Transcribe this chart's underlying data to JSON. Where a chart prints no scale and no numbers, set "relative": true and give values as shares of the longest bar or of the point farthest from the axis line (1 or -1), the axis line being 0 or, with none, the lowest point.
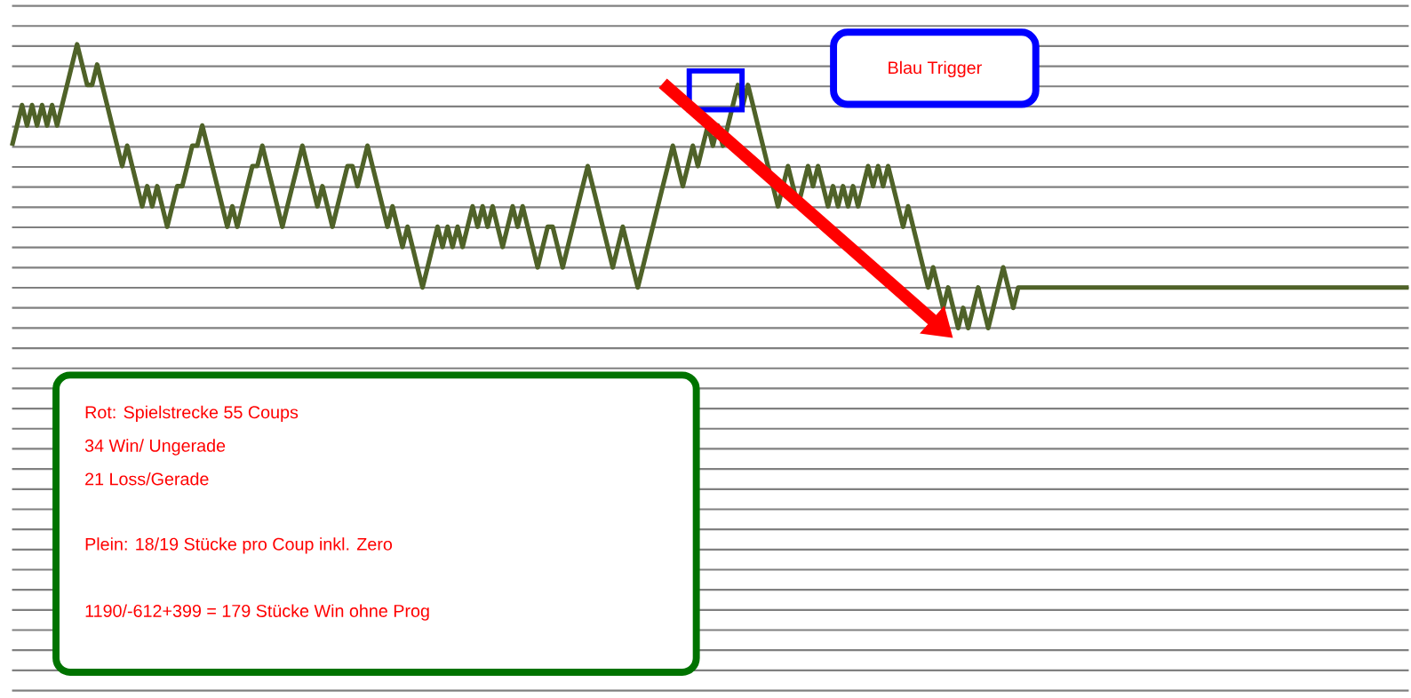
{
  "chart_data": {
    "type": "line",
    "relative": true,
    "grid": true,
    "color": "#4f6228",
    "categories": [
      null,
      null,
      null,
      null,
      null,
      null,
      null,
      null,
      null,
      null,
      null,
      null,
      null,
      null,
      null,
      null,
      null,
      null,
      null,
      null,
      null,
      null,
      null,
      null,
      null,
      null,
      null,
      null,
      null,
      null,
      null,
      null,
      null,
      null,
      null,
      null,
      null,
      null,
      null,
      null,
      null,
      null,
      null,
      null,
      null,
      null,
      null,
      null,
      null,
      null,
      null,
      null,
      null,
      null,
      null,
      null,
      null,
      null,
      null,
      null,
      null,
      null,
      null,
      null,
      null,
      null,
      null,
      null,
      null,
      null,
      null,
      null,
      null,
      null,
      null,
      null,
      null,
      null,
      null,
      null,
      null,
      null,
      null,
      null,
      null,
      null,
      null,
      null,
      null,
      null,
      null,
      null,
      null,
      null,
      null,
      null,
      null,
      null,
      null,
      null,
      null,
      null,
      null,
      null,
      null,
      null,
      null,
      null,
      null,
      null,
      null,
      null,
      null,
      null,
      null,
      null,
      null,
      null,
      null,
      null,
      null,
      null,
      null,
      null,
      null,
      null,
      null,
      null,
      null,
      null,
      null,
      null,
      null,
      null,
      null,
      null,
      null,
      null,
      null,
      null,
      null,
      null,
      null,
      null,
      null,
      null,
      null,
      null,
      null,
      null,
      null,
      null,
      null,
      null,
      null,
      null,
      null,
      null,
      null,
      null,
      null,
      null,
      null,
      null,
      null,
      null,
      null,
      null,
      null,
      null,
      null,
      null,
      null,
      null,
      null,
      null,
      null,
      null,
      null,
      null,
      null,
      null,
      null,
      null,
      null,
      null,
      null,
      null,
      null,
      null,
      null,
      null,
      null,
      null,
      null,
      null,
      null,
      null,
      null,
      null,
      null,
      null,
      null,
      null,
      null,
      null,
      null,
      null,
      null,
      null,
      null,
      null,
      null,
      null,
      null,
      null,
      null,
      null,
      null,
      null,
      null,
      null,
      null,
      null,
      null,
      null,
      null,
      null,
      null,
      null,
      null,
      null,
      null,
      null,
      null,
      null,
      null,
      null,
      null,
      null,
      null,
      null,
      null,
      null,
      null,
      null,
      null,
      null,
      null,
      null,
      null,
      null,
      null,
      null,
      null,
      null,
      null,
      null,
      null,
      null,
      null,
      null,
      null,
      null,
      null,
      null,
      null,
      null,
      null,
      null,
      null,
      null,
      null,
      null,
      null,
      null,
      null,
      null,
      null,
      null
    ],
    "values": [
      0.643,
      0.714,
      0.786,
      0.714,
      0.786,
      0.714,
      0.786,
      0.714,
      0.786,
      0.714,
      0.786,
      0.857,
      0.929,
      1,
      0.929,
      0.857,
      0.857,
      0.929,
      0.857,
      0.786,
      0.714,
      0.643,
      0.571,
      0.643,
      0.571,
      0.5,
      0.429,
      0.5,
      0.429,
      0.5,
      0.429,
      0.357,
      0.429,
      0.5,
      0.5,
      0.571,
      0.643,
      0.643,
      0.714,
      0.643,
      0.571,
      0.5,
      0.429,
      0.357,
      0.429,
      0.357,
      0.429,
      0.5,
      0.571,
      0.571,
      0.643,
      0.571,
      0.5,
      0.429,
      0.357,
      0.429,
      0.5,
      0.571,
      0.643,
      0.571,
      0.5,
      0.429,
      0.5,
      0.429,
      0.357,
      0.429,
      0.5,
      0.571,
      0.571,
      0.5,
      0.571,
      0.643,
      0.571,
      0.5,
      0.429,
      0.357,
      0.429,
      0.357,
      0.286,
      0.357,
      0.286,
      0.214,
      0.143,
      0.214,
      0.286,
      0.357,
      0.286,
      0.357,
      0.286,
      0.357,
      0.286,
      0.357,
      0.429,
      0.357,
      0.429,
      0.357,
      0.429,
      0.357,
      0.286,
      0.357,
      0.429,
      0.357,
      0.429,
      0.357,
      0.286,
      0.214,
      0.286,
      0.357,
      0.357,
      0.286,
      0.214,
      0.286,
      0.357,
      0.429,
      0.5,
      0.571,
      0.5,
      0.429,
      0.357,
      0.286,
      0.214,
      0.286,
      0.357,
      0.286,
      0.214,
      0.143,
      0.214,
      0.286,
      0.357,
      0.429,
      0.5,
      0.571,
      0.643,
      0.571,
      0.5,
      0.571,
      0.643,
      0.571,
      0.643,
      0.714,
      0.643,
      0.714,
      0.643,
      0.714,
      0.786,
      0.857,
      0.786,
      0.857,
      0.786,
      0.714,
      0.643,
      0.571,
      0.5,
      0.429,
      0.5,
      0.571,
      0.5,
      0.429,
      0.5,
      0.571,
      0.5,
      0.571,
      0.5,
      0.429,
      0.5,
      0.429,
      0.5,
      0.429,
      0.5,
      0.429,
      0.5,
      0.571,
      0.5,
      0.571,
      0.5,
      0.571,
      0.5,
      0.429,
      0.357,
      0.429,
      0.357,
      0.286,
      0.214,
      0.143,
      0.214,
      0.143,
      0.071,
      0.143,
      0.071,
      0,
      0.071,
      0,
      0.071,
      0.143,
      0.071,
      0,
      0.071,
      0.143,
      0.214,
      0.143,
      0.071,
      0.143,
      0.143,
      0.143,
      0.143,
      0.143,
      0.143,
      0.143,
      0.143,
      0.143,
      0.143,
      0.143,
      0.143,
      0.143,
      0.143,
      0.143,
      0.143,
      0.143,
      0.143,
      0.143,
      0.143,
      0.143,
      0.143,
      0.143,
      0.143,
      0.143,
      0.143,
      0.143,
      0.143,
      0.143,
      0.143,
      0.143,
      0.143,
      0.143,
      0.143,
      0.143,
      0.143,
      0.143,
      0.143,
      0.143,
      0.143,
      0.143,
      0.143,
      0.143,
      0.143,
      0.143,
      0.143,
      0.143,
      0.143,
      0.143,
      0.143,
      0.143,
      0.143,
      0.143,
      0.143,
      0.143,
      0.143,
      0.143,
      0.143,
      0.143,
      0.143,
      0.143,
      0.143,
      0.143,
      0.143,
      0.143,
      0.143,
      0.143,
      0.143,
      0.143,
      0.143,
      0.143,
      0.143,
      0.143,
      0.143,
      0.143,
      0.143,
      0.143,
      0.143,
      0.143
    ],
    "annotations": [
      "Rot: Spielstrecke 55 Coups",
      "34 Win/ Ungerade",
      "21 Loss/Gerade",
      "Plein: 18/19 Stücke pro Coup inkl. Zero",
      "1190/-612+399 = 179 Stücke Win ohne Prog",
      "Blau Trigger"
    ]
  }
}
